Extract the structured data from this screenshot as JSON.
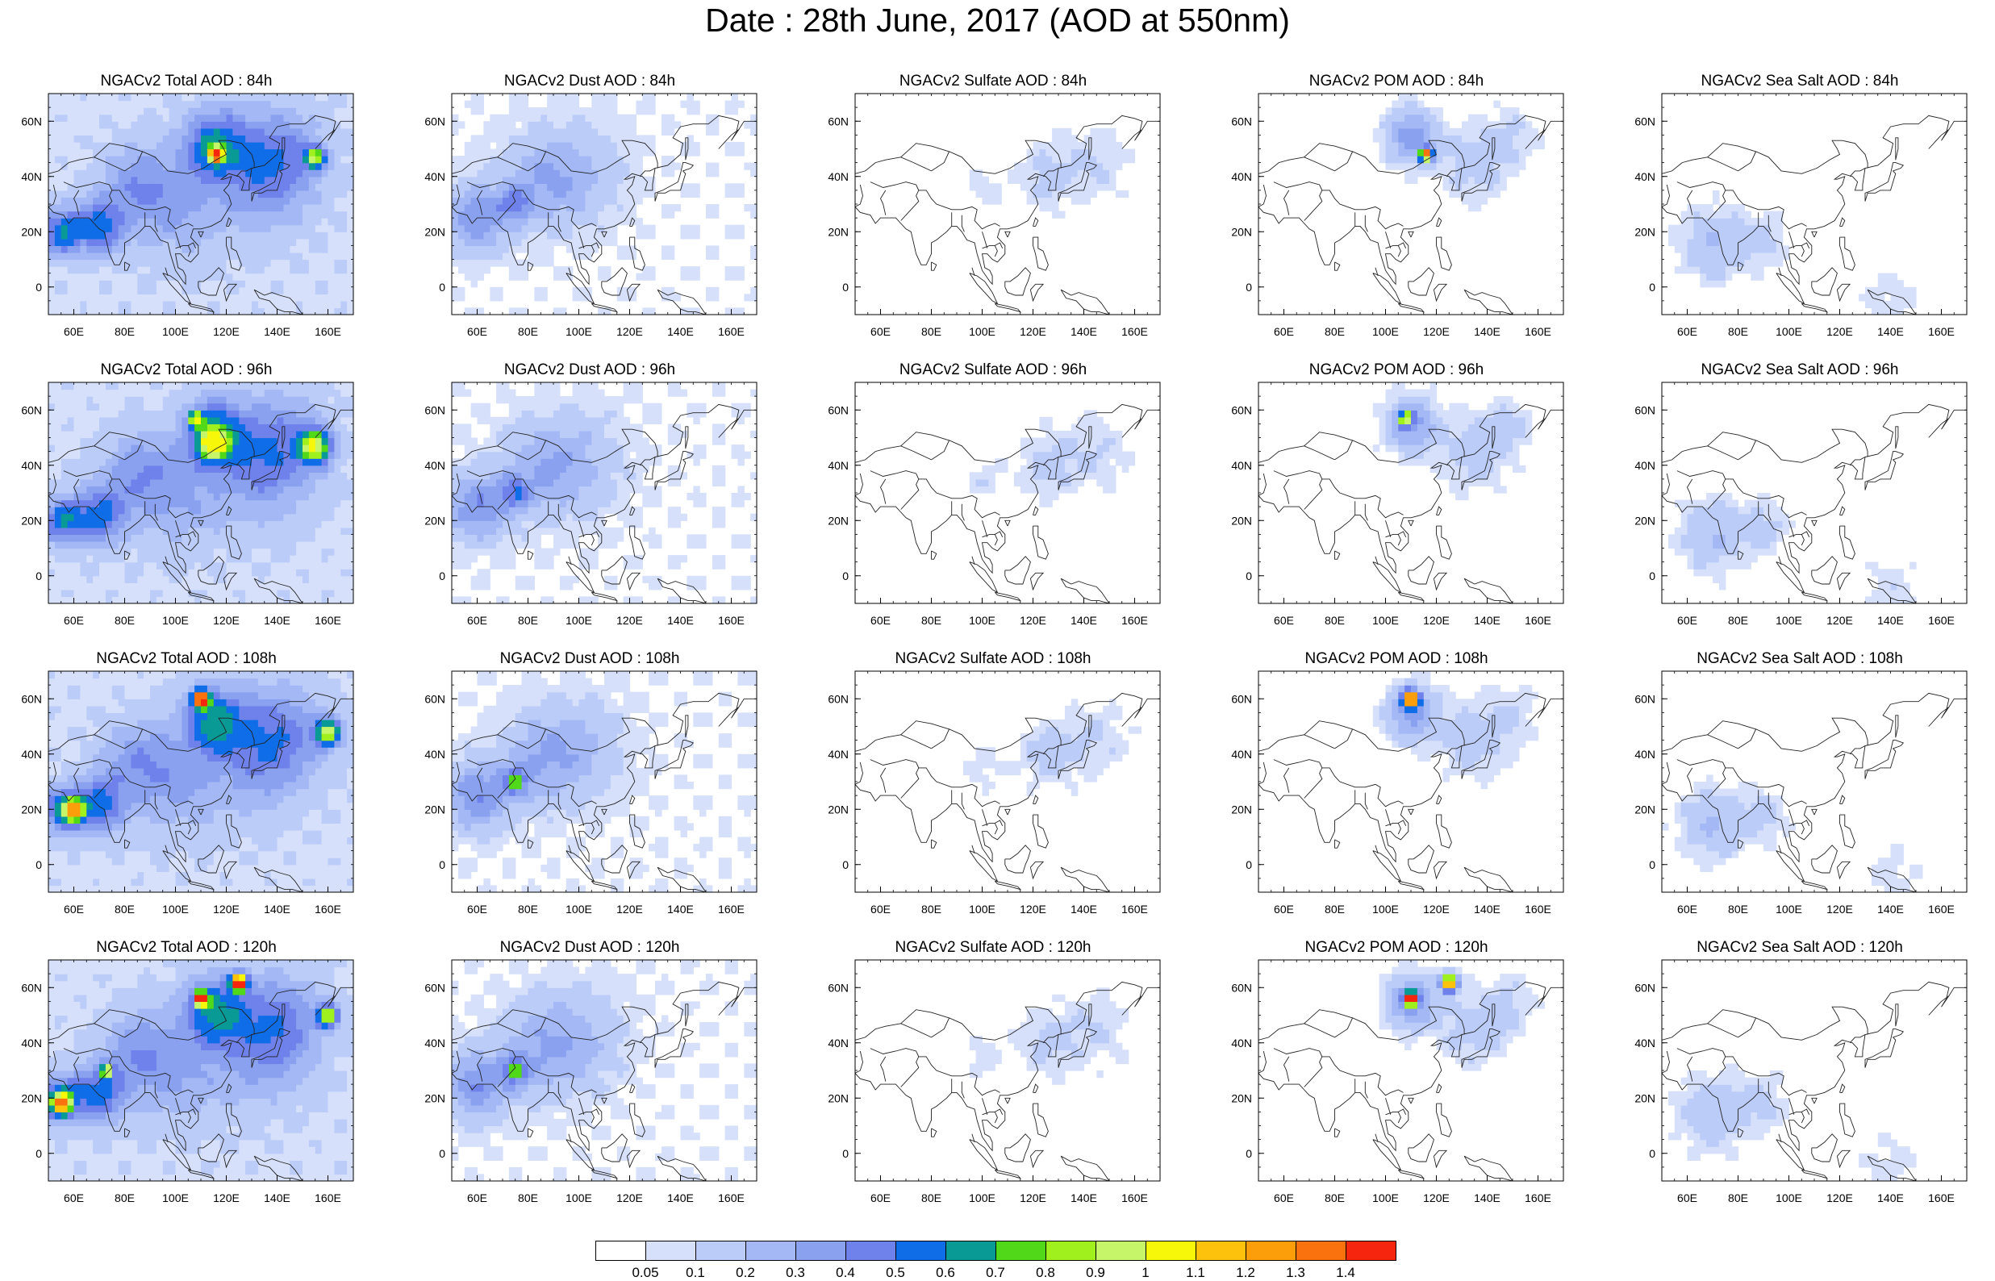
{
  "title": "Date : 28th June, 2017 (AOD at 550nm)",
  "map_axes": {
    "x_ticks": [
      "60E",
      "80E",
      "100E",
      "120E",
      "140E",
      "160E"
    ],
    "y_ticks": [
      "60N",
      "40N",
      "20N",
      "0"
    ],
    "lon_range": [
      50,
      170
    ],
    "lat_range": [
      -10,
      70
    ]
  },
  "panels": [
    {
      "title": "NGACv2 Total AOD : 84h",
      "species": "total",
      "lead": "84h",
      "max_aod": 1.4
    },
    {
      "title": "NGACv2 Dust AOD : 84h",
      "species": "dust",
      "lead": "84h",
      "max_aod": 0.5
    },
    {
      "title": "NGACv2 Sulfate AOD : 84h",
      "species": "sulfate",
      "lead": "84h",
      "max_aod": 0.2
    },
    {
      "title": "NGACv2 POM AOD : 84h",
      "species": "pom",
      "lead": "84h",
      "max_aod": 1.4
    },
    {
      "title": "NGACv2 Sea Salt AOD : 84h",
      "species": "seasalt",
      "lead": "84h",
      "max_aod": 0.4
    },
    {
      "title": "NGACv2 Total AOD : 96h",
      "species": "total",
      "lead": "96h",
      "max_aod": 1.0
    },
    {
      "title": "NGACv2 Dust AOD : 96h",
      "species": "dust",
      "lead": "96h",
      "max_aod": 0.5
    },
    {
      "title": "NGACv2 Sulfate AOD : 96h",
      "species": "sulfate",
      "lead": "96h",
      "max_aod": 0.2
    },
    {
      "title": "NGACv2 POM AOD : 96h",
      "species": "pom",
      "lead": "96h",
      "max_aod": 0.9
    },
    {
      "title": "NGACv2 Sea Salt AOD : 96h",
      "species": "seasalt",
      "lead": "96h",
      "max_aod": 0.4
    },
    {
      "title": "NGACv2 Total AOD : 108h",
      "species": "total",
      "lead": "108h",
      "max_aod": 1.4
    },
    {
      "title": "NGACv2 Dust AOD : 108h",
      "species": "dust",
      "lead": "108h",
      "max_aod": 0.9
    },
    {
      "title": "NGACv2 Sulfate AOD : 108h",
      "species": "sulfate",
      "lead": "108h",
      "max_aod": 0.2
    },
    {
      "title": "NGACv2 POM AOD : 108h",
      "species": "pom",
      "lead": "108h",
      "max_aod": 1.4
    },
    {
      "title": "NGACv2 Sea Salt AOD : 108h",
      "species": "seasalt",
      "lead": "108h",
      "max_aod": 0.4
    },
    {
      "title": "NGACv2 Total AOD : 120h",
      "species": "total",
      "lead": "120h",
      "max_aod": 1.4
    },
    {
      "title": "NGACv2 Dust AOD : 120h",
      "species": "dust",
      "lead": "120h",
      "max_aod": 1.0
    },
    {
      "title": "NGACv2 Sulfate AOD : 120h",
      "species": "sulfate",
      "lead": "120h",
      "max_aod": 0.2
    },
    {
      "title": "NGACv2 POM AOD : 120h",
      "species": "pom",
      "lead": "120h",
      "max_aod": 1.4
    },
    {
      "title": "NGACv2 Sea Salt  AOD : 120h",
      "species": "seasalt",
      "lead": "120h",
      "max_aod": 0.4
    }
  ],
  "colorbar": {
    "labels": [
      "0.05",
      "0.1",
      "0.2",
      "0.3",
      "0.4",
      "0.5",
      "0.6",
      "0.7",
      "0.8",
      "0.9",
      "1",
      "1.1",
      "1.2",
      "1.3",
      "1.4"
    ],
    "colors": [
      "#ffffff",
      "#d6e0fa",
      "#bcccf8",
      "#a3b8f4",
      "#8aa1f0",
      "#6f81ea",
      "#0f6de8",
      "#0a9a96",
      "#51d819",
      "#a0f01d",
      "#c6f56a",
      "#f7f70a",
      "#fcc20c",
      "#fc9d0a",
      "#f9720e",
      "#f5260d"
    ]
  }
}
